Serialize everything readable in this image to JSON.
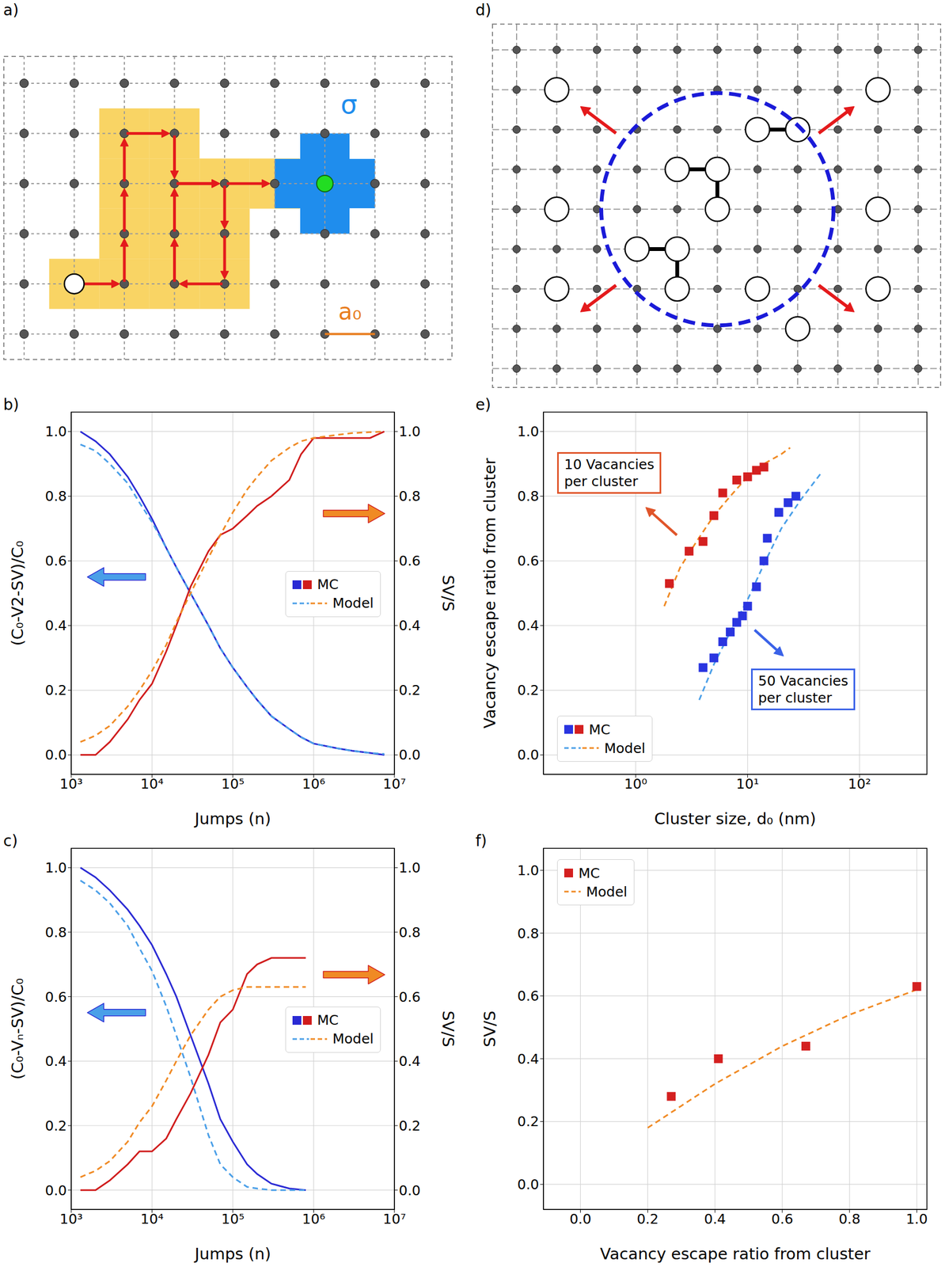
{
  "diagrams": [
    {
      "panel": "a)",
      "texts": {
        "sigma": "σ",
        "spacing": "a₀"
      }
    },
    {
      "panel": "d)"
    }
  ],
  "chart_data": [
    {
      "panel": "b)",
      "type": "line",
      "x_label": "Jumps (n)",
      "y_label": "(C₀-V2-SV)/C₀",
      "y2_label": "SV/S",
      "log": "x",
      "grid": true,
      "legend": "center right",
      "xlim": [
        1000,
        10000000
      ],
      "xticks": [
        {
          "value": 1000,
          "label": "10³"
        },
        {
          "value": 10000,
          "label": "10⁴"
        },
        {
          "value": 100000,
          "label": "10⁵"
        },
        {
          "value": 1000000,
          "label": "10⁶"
        },
        {
          "value": 10000000,
          "label": "10⁷"
        }
      ],
      "ylim": [
        -0.06,
        1.06
      ],
      "yticks": [
        {
          "value": 0,
          "label": "0.0"
        },
        {
          "value": 0.2,
          "label": "0.2"
        },
        {
          "value": 0.4,
          "label": "0.4"
        },
        {
          "value": 0.6,
          "label": "0.6"
        },
        {
          "value": 0.8,
          "label": "0.8"
        },
        {
          "value": 1,
          "label": "1.0"
        }
      ],
      "y2lim": [
        -0.06,
        1.06
      ],
      "y2ticks": [
        {
          "value": 0,
          "label": "0.0"
        },
        {
          "value": 0.2,
          "label": "0.2"
        },
        {
          "value": 0.4,
          "label": "0.4"
        },
        {
          "value": 0.6,
          "label": "0.6"
        },
        {
          "value": 0.8,
          "label": "0.8"
        },
        {
          "value": 1,
          "label": "1.0"
        }
      ],
      "x": [
        1300,
        2000,
        3000,
        5000,
        7000,
        10000,
        15000,
        20000,
        30000,
        50000,
        70000,
        100000,
        150000,
        200000,
        300000,
        500000,
        700000,
        1000000,
        2000000,
        3000000,
        5000000,
        7500000
      ],
      "series": [
        {
          "name": "MC",
          "color": "#2a2ad4",
          "line_style": "solid",
          "values": [
            1.0,
            0.97,
            0.93,
            0.86,
            0.8,
            0.73,
            0.64,
            0.58,
            0.5,
            0.4,
            0.33,
            0.27,
            0.21,
            0.17,
            0.12,
            0.08,
            0.055,
            0.035,
            0.02,
            0.013,
            0.006,
            0.0
          ]
        },
        {
          "name": "Model",
          "color": "#4a9fe8",
          "line_style": "dashed",
          "values": [
            0.96,
            0.94,
            0.9,
            0.84,
            0.78,
            0.72,
            0.64,
            0.58,
            0.5,
            0.4,
            0.33,
            0.27,
            0.21,
            0.17,
            0.12,
            0.08,
            0.055,
            0.035,
            0.02,
            0.013,
            0.006,
            0.003
          ]
        },
        {
          "name": "MC",
          "color": "#d01c1c",
          "line_style": "solid",
          "axis": "y2",
          "values": [
            0.0,
            0.0,
            0.04,
            0.11,
            0.17,
            0.22,
            0.32,
            0.4,
            0.52,
            0.63,
            0.68,
            0.7,
            0.74,
            0.77,
            0.8,
            0.85,
            0.93,
            0.98,
            0.98,
            0.98,
            0.98,
            1.0
          ]
        },
        {
          "name": "Model",
          "color": "#f08a24",
          "line_style": "dashed",
          "axis": "y2",
          "values": [
            0.04,
            0.06,
            0.09,
            0.15,
            0.2,
            0.26,
            0.34,
            0.41,
            0.5,
            0.61,
            0.68,
            0.75,
            0.82,
            0.86,
            0.91,
            0.95,
            0.97,
            0.98,
            0.99,
            0.995,
            0.998,
            1.0
          ]
        }
      ]
    },
    {
      "panel": "c)",
      "type": "line",
      "x_label": "Jumps (n)",
      "y_label": "(C₀-Vₙ-SV)/C₀",
      "y2_label": "SV/S",
      "log": "x",
      "grid": true,
      "legend": "center right",
      "xlim": [
        1000,
        10000000
      ],
      "xticks": [
        {
          "value": 1000,
          "label": "10³"
        },
        {
          "value": 10000,
          "label": "10⁴"
        },
        {
          "value": 100000,
          "label": "10⁵"
        },
        {
          "value": 1000000,
          "label": "10⁶"
        },
        {
          "value": 10000000,
          "label": "10⁷"
        }
      ],
      "ylim": [
        -0.06,
        1.06
      ],
      "yticks": [
        {
          "value": 0,
          "label": "0.0"
        },
        {
          "value": 0.2,
          "label": "0.2"
        },
        {
          "value": 0.4,
          "label": "0.4"
        },
        {
          "value": 0.6,
          "label": "0.6"
        },
        {
          "value": 0.8,
          "label": "0.8"
        },
        {
          "value": 1,
          "label": "1.0"
        }
      ],
      "y2lim": [
        -0.06,
        1.06
      ],
      "y2ticks": [
        {
          "value": 0,
          "label": "0.0"
        },
        {
          "value": 0.2,
          "label": "0.2"
        },
        {
          "value": 0.4,
          "label": "0.4"
        },
        {
          "value": 0.6,
          "label": "0.6"
        },
        {
          "value": 0.8,
          "label": "0.8"
        },
        {
          "value": 1,
          "label": "1.0"
        }
      ],
      "x": [
        1300,
        2000,
        3000,
        5000,
        7000,
        10000,
        15000,
        20000,
        30000,
        50000,
        70000,
        100000,
        150000,
        200000,
        300000,
        500000,
        800000
      ],
      "series": [
        {
          "name": "MC",
          "color": "#2a2ad4",
          "line_style": "solid",
          "values": [
            1.0,
            0.97,
            0.93,
            0.87,
            0.82,
            0.76,
            0.67,
            0.6,
            0.48,
            0.33,
            0.22,
            0.15,
            0.08,
            0.05,
            0.02,
            0.005,
            0.0
          ]
        },
        {
          "name": "Model",
          "color": "#4a9fe8",
          "line_style": "dashed",
          "values": [
            0.96,
            0.93,
            0.89,
            0.82,
            0.75,
            0.68,
            0.57,
            0.48,
            0.35,
            0.17,
            0.08,
            0.04,
            0.01,
            0.005,
            0.0,
            0.0,
            0.0
          ]
        },
        {
          "name": "MC",
          "color": "#d01c1c",
          "line_style": "solid",
          "axis": "y2",
          "values": [
            0.0,
            0.0,
            0.03,
            0.08,
            0.12,
            0.12,
            0.16,
            0.22,
            0.3,
            0.42,
            0.52,
            0.56,
            0.67,
            0.7,
            0.72,
            0.72,
            0.72
          ]
        },
        {
          "name": "Model",
          "color": "#f08a24",
          "line_style": "dashed",
          "axis": "y2",
          "values": [
            0.04,
            0.06,
            0.09,
            0.15,
            0.21,
            0.26,
            0.34,
            0.4,
            0.48,
            0.56,
            0.6,
            0.62,
            0.63,
            0.63,
            0.63,
            0.63,
            0.63
          ]
        }
      ]
    },
    {
      "panel": "e)",
      "type": "scatter",
      "x_label": "Cluster size, d₀ (nm)",
      "y_label": "Vacancy escape ratio from cluster",
      "log": "x",
      "grid": true,
      "legend": "lower left",
      "xlim": [
        0.15,
        400
      ],
      "xticks": [
        {
          "value": 1,
          "label": "10⁰"
        },
        {
          "value": 10,
          "label": "10¹"
        },
        {
          "value": 100,
          "label": "10²"
        }
      ],
      "ylim": [
        -0.06,
        1.06
      ],
      "yticks": [
        {
          "value": 0,
          "label": "0.0"
        },
        {
          "value": 0.2,
          "label": "0.2"
        },
        {
          "value": 0.4,
          "label": "0.4"
        },
        {
          "value": 0.6,
          "label": "0.6"
        },
        {
          "value": 0.8,
          "label": "0.8"
        },
        {
          "value": 1,
          "label": "1.0"
        }
      ],
      "annotations": [
        {
          "lines": [
            "10 Vacancies",
            "per cluster"
          ],
          "color": "#e0552a"
        },
        {
          "lines": [
            "50 Vacancies",
            "per cluster"
          ],
          "color": "#3a62e8"
        }
      ],
      "series": [
        {
          "name": "MC",
          "color": "#2a35e0",
          "marker": "square",
          "x": [
            4,
            5,
            6,
            7,
            8,
            9,
            10,
            12,
            14,
            15,
            19,
            23,
            27
          ],
          "values": [
            0.27,
            0.3,
            0.35,
            0.38,
            0.41,
            0.43,
            0.46,
            0.52,
            0.6,
            0.67,
            0.75,
            0.78,
            0.8
          ]
        },
        {
          "name": "MC",
          "color": "#d42020",
          "marker": "square",
          "x": [
            2,
            3,
            4,
            5,
            6,
            8,
            10,
            12,
            14
          ],
          "values": [
            0.53,
            0.63,
            0.66,
            0.74,
            0.81,
            0.85,
            0.86,
            0.88,
            0.89
          ]
        },
        {
          "name": "Model",
          "color": "#4a9fe8",
          "line_style": "dashed",
          "x": [
            3.7,
            5,
            7,
            10,
            14,
            20,
            30,
            45
          ],
          "values": [
            0.17,
            0.28,
            0.38,
            0.48,
            0.59,
            0.7,
            0.79,
            0.87
          ]
        },
        {
          "name": "Model",
          "color": "#f08a24",
          "line_style": "dashed",
          "x": [
            1.8,
            2.5,
            3.5,
            5,
            7,
            10,
            14,
            20,
            24
          ],
          "values": [
            0.46,
            0.58,
            0.66,
            0.74,
            0.8,
            0.86,
            0.9,
            0.93,
            0.95
          ]
        }
      ]
    },
    {
      "panel": "f)",
      "type": "scatter",
      "x_label": "Vacancy escape ratio from cluster",
      "y_label": "SV/S",
      "grid": true,
      "legend": "upper left",
      "xlim": [
        -0.11,
        1.03
      ],
      "xticks": [
        {
          "value": 0,
          "label": "0.0"
        },
        {
          "value": 0.2,
          "label": "0.2"
        },
        {
          "value": 0.4,
          "label": "0.4"
        },
        {
          "value": 0.6,
          "label": "0.6"
        },
        {
          "value": 0.8,
          "label": "0.8"
        },
        {
          "value": 1,
          "label": "1.0"
        }
      ],
      "ylim": [
        -0.08,
        1.07
      ],
      "yticks": [
        {
          "value": 0,
          "label": "0.0"
        },
        {
          "value": 0.2,
          "label": "0.2"
        },
        {
          "value": 0.4,
          "label": "0.4"
        },
        {
          "value": 0.6,
          "label": "0.6"
        },
        {
          "value": 0.8,
          "label": "0.8"
        },
        {
          "value": 1,
          "label": "1.0"
        }
      ],
      "series": [
        {
          "name": "MC",
          "color": "#d42020",
          "marker": "square",
          "x": [
            0.27,
            0.41,
            0.67,
            1.0
          ],
          "values": [
            0.28,
            0.4,
            0.44,
            0.63
          ]
        },
        {
          "name": "Model",
          "color": "#f08a24",
          "line_style": "dashed",
          "x": [
            0.2,
            0.3,
            0.4,
            0.5,
            0.6,
            0.7,
            0.8,
            0.9,
            1.0
          ],
          "values": [
            0.18,
            0.25,
            0.32,
            0.38,
            0.44,
            0.49,
            0.54,
            0.58,
            0.62
          ]
        }
      ]
    }
  ]
}
